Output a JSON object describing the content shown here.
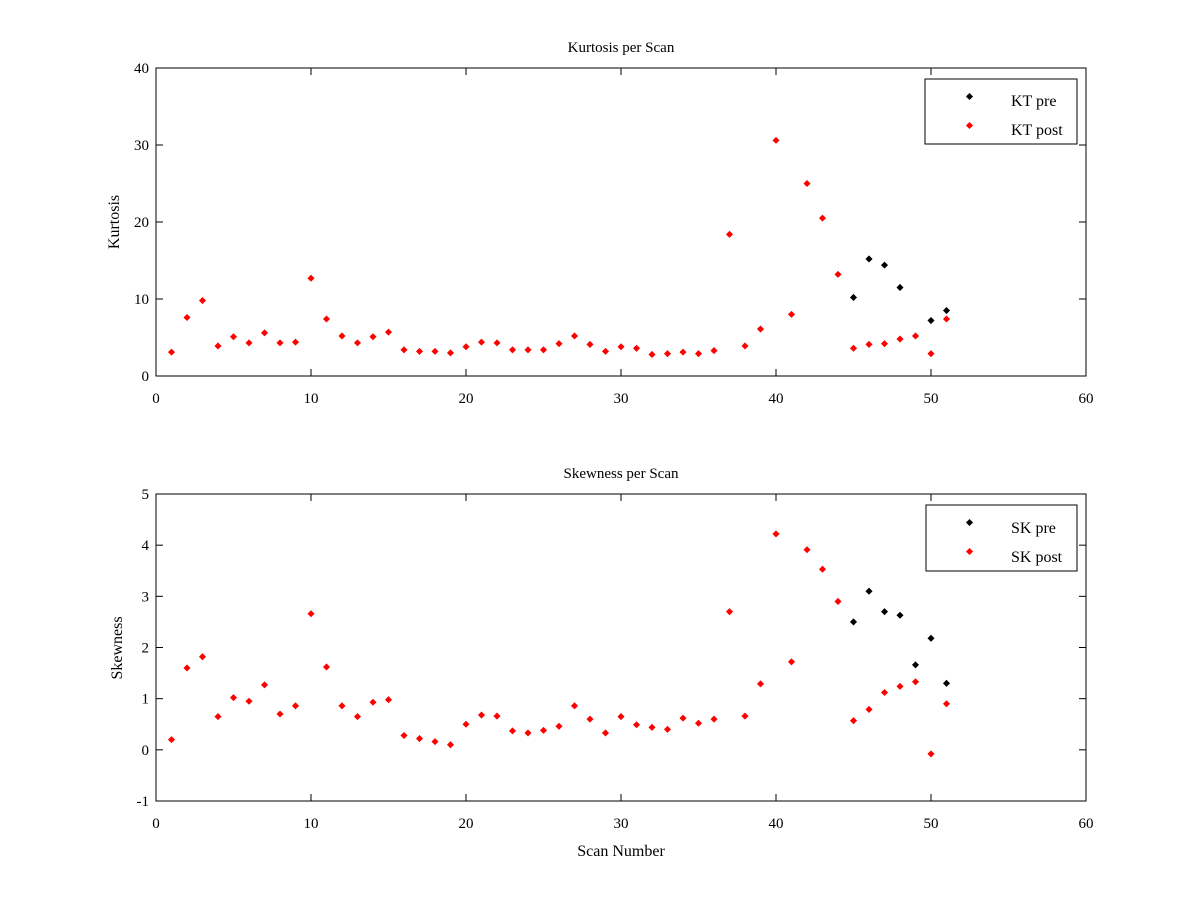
{
  "colors": {
    "pre": "#000000",
    "post": "#ff0000",
    "background": "#ffffff",
    "axes": "#000000"
  },
  "chart_data": [
    {
      "type": "scatter",
      "title": "Kurtosis per Scan",
      "xlabel": "",
      "ylabel": "Kurtosis",
      "xlim": [
        0,
        60
      ],
      "ylim": [
        0,
        40
      ],
      "xticks": [
        "0",
        "10",
        "20",
        "30",
        "40",
        "50",
        "60"
      ],
      "yticks": [
        "0",
        "10",
        "20",
        "30",
        "40"
      ],
      "legend_position": "top-right",
      "grid": false,
      "series": [
        {
          "name": "KT pre",
          "color": "#000000",
          "x": [
            45,
            46,
            47,
            48,
            50,
            51
          ],
          "y": [
            10.2,
            15.2,
            14.4,
            11.5,
            7.2,
            8.5
          ]
        },
        {
          "name": "KT post",
          "color": "#ff0000",
          "x": [
            1,
            2,
            3,
            4,
            5,
            6,
            7,
            8,
            9,
            10,
            11,
            12,
            13,
            14,
            15,
            16,
            17,
            18,
            19,
            20,
            21,
            22,
            23,
            24,
            25,
            26,
            27,
            28,
            29,
            30,
            31,
            32,
            33,
            34,
            35,
            36,
            37,
            38,
            39,
            40,
            41,
            42,
            43,
            44,
            45,
            46,
            47,
            48,
            49,
            50,
            51
          ],
          "y": [
            3.1,
            7.6,
            9.8,
            3.9,
            5.1,
            4.3,
            5.6,
            4.3,
            4.4,
            12.7,
            7.4,
            5.2,
            4.3,
            5.1,
            5.7,
            3.4,
            3.2,
            3.2,
            3.0,
            3.8,
            4.4,
            4.3,
            3.4,
            3.4,
            3.4,
            4.2,
            5.2,
            4.1,
            3.2,
            3.8,
            3.6,
            2.8,
            2.9,
            3.1,
            2.9,
            3.3,
            18.4,
            3.9,
            6.1,
            30.6,
            8.0,
            25.0,
            20.5,
            13.2,
            3.6,
            4.1,
            4.2,
            4.8,
            5.2,
            2.9,
            7.4
          ]
        }
      ]
    },
    {
      "type": "scatter",
      "title": "Skewness per Scan",
      "xlabel": "Scan Number",
      "ylabel": "Skewness",
      "xlim": [
        0,
        60
      ],
      "ylim": [
        -1,
        5
      ],
      "xticks": [
        "0",
        "10",
        "20",
        "30",
        "40",
        "50",
        "60"
      ],
      "yticks": [
        "-1",
        "0",
        "1",
        "2",
        "3",
        "4",
        "5"
      ],
      "legend_position": "top-right",
      "grid": false,
      "series": [
        {
          "name": "SK pre",
          "color": "#000000",
          "x": [
            45,
            46,
            47,
            48,
            49,
            50,
            51
          ],
          "y": [
            2.5,
            3.1,
            2.7,
            2.63,
            1.66,
            2.18,
            1.3
          ]
        },
        {
          "name": "SK post",
          "color": "#ff0000",
          "x": [
            1,
            2,
            3,
            4,
            5,
            6,
            7,
            8,
            9,
            10,
            11,
            12,
            13,
            14,
            15,
            16,
            17,
            18,
            19,
            20,
            21,
            22,
            23,
            24,
            25,
            26,
            27,
            28,
            29,
            30,
            31,
            32,
            33,
            34,
            35,
            36,
            37,
            38,
            39,
            40,
            41,
            42,
            43,
            44,
            45,
            46,
            47,
            48,
            49,
            50,
            51
          ],
          "y": [
            0.2,
            1.6,
            1.82,
            0.65,
            1.02,
            0.95,
            1.27,
            0.7,
            0.86,
            2.66,
            1.62,
            0.86,
            0.65,
            0.93,
            0.98,
            0.28,
            0.22,
            0.16,
            0.1,
            0.5,
            0.68,
            0.66,
            0.37,
            0.33,
            0.38,
            0.46,
            0.86,
            0.6,
            0.33,
            0.65,
            0.49,
            0.44,
            0.4,
            0.62,
            0.52,
            0.6,
            2.7,
            0.66,
            1.29,
            4.22,
            1.72,
            3.91,
            3.53,
            2.9,
            0.57,
            0.79,
            1.12,
            1.24,
            1.33,
            -0.08,
            0.9
          ]
        }
      ]
    }
  ]
}
